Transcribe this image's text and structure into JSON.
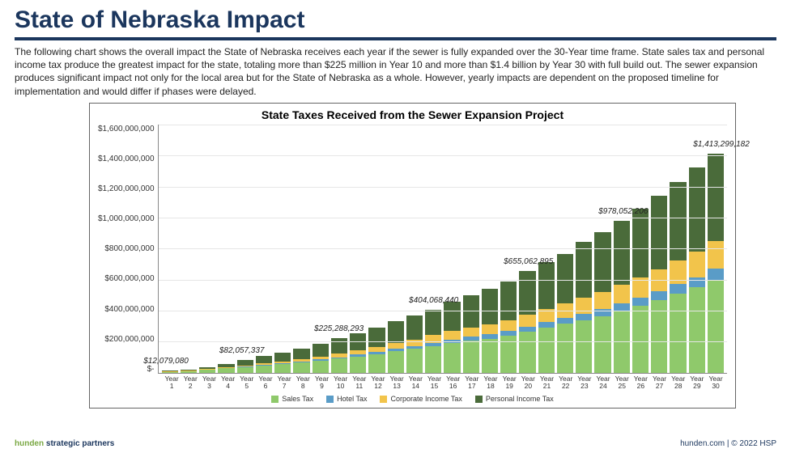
{
  "title": "State of Nebraska Impact",
  "body": "The following chart shows the overall impact the State of Nebraska receives each year if the sewer is fully expanded over the 30-Year time frame. State sales tax and personal income tax produce the greatest impact for the state, totaling more than $225 million in Year 10 and more than $1.4 billion by Year 30 with full build out. The sewer expansion produces significant impact not only for the local area but for the State of Nebraska as a whole. However, yearly impacts are dependent on the proposed timeline for implementation and would differ if phases were delayed.",
  "chart": {
    "title": "State Taxes Received from the Sewer Expansion Project",
    "type": "stacked-bar",
    "y_max": 1600000000,
    "y_ticks": [
      "$1,600,000,000",
      "$1,400,000,000",
      "$1,200,000,000",
      "$1,000,000,000",
      "$800,000,000",
      "$600,000,000",
      "$400,000,000",
      "$200,000,000",
      "$-"
    ],
    "x_labels": [
      "Year 1",
      "Year 2",
      "Year 3",
      "Year 4",
      "Year 5",
      "Year 6",
      "Year 7",
      "Year 8",
      "Year 9",
      "Year 10",
      "Year 11",
      "Year 12",
      "Year 13",
      "Year 14",
      "Year 15",
      "Year 16",
      "Year 17",
      "Year 18",
      "Year 19",
      "Year 20",
      "Year 21",
      "Year 22",
      "Year 23",
      "Year 24",
      "Year 25",
      "Year 26",
      "Year 27",
      "Year 28",
      "Year 29",
      "Year 30"
    ],
    "series": [
      {
        "name": "Sales Tax",
        "color": "#8fc96b"
      },
      {
        "name": "Hotel Tax",
        "color": "#5a9cc7"
      },
      {
        "name": "Corporate Income Tax",
        "color": "#f2c44b"
      },
      {
        "name": "Personal Income Tax",
        "color": "#4a6b3a"
      }
    ],
    "values": [
      [
        6,
        0.5,
        1.5,
        4
      ],
      [
        10,
        1,
        2,
        7
      ],
      [
        18,
        1.5,
        4,
        12
      ],
      [
        28,
        2,
        6,
        19
      ],
      [
        36,
        3,
        8,
        35
      ],
      [
        48,
        4,
        10,
        48
      ],
      [
        57,
        5,
        12,
        56
      ],
      [
        66,
        6,
        15,
        68
      ],
      [
        78,
        7,
        18,
        82
      ],
      [
        90,
        10,
        25,
        100
      ],
      [
        105,
        12,
        28,
        110
      ],
      [
        120,
        14,
        32,
        124
      ],
      [
        138,
        16,
        36,
        140
      ],
      [
        155,
        18,
        41,
        155
      ],
      [
        170,
        22,
        52,
        160
      ],
      [
        190,
        24,
        56,
        188
      ],
      [
        205,
        26,
        60,
        208
      ],
      [
        220,
        28,
        65,
        227
      ],
      [
        240,
        30,
        70,
        250
      ],
      [
        265,
        32,
        78,
        280
      ],
      [
        290,
        35,
        86,
        300
      ],
      [
        315,
        38,
        94,
        320
      ],
      [
        340,
        41,
        102,
        358
      ],
      [
        365,
        44,
        110,
        385
      ],
      [
        400,
        48,
        120,
        410
      ],
      [
        430,
        52,
        130,
        443
      ],
      [
        470,
        56,
        140,
        474
      ],
      [
        510,
        60,
        152,
        508
      ],
      [
        550,
        65,
        165,
        540
      ],
      [
        600,
        70,
        180,
        563
      ]
    ],
    "callouts": [
      {
        "year": 1,
        "label": "$12,079,080"
      },
      {
        "year": 5,
        "label": "$82,057,337"
      },
      {
        "year": 10,
        "label": "$225,288,293"
      },
      {
        "year": 15,
        "label": "$404,068,440"
      },
      {
        "year": 20,
        "label": "$655,062,895"
      },
      {
        "year": 25,
        "label": "$978,052,206"
      },
      {
        "year": 30,
        "label": "$1,413,299,182"
      }
    ],
    "grid_color": "#e6e6e6",
    "axis_font_size": 10,
    "legend_font_size": 9
  },
  "footer": {
    "brand_a": "hunden",
    "brand_b": " strategic partners",
    "right": "hunden.com | © 2022 HSP"
  }
}
